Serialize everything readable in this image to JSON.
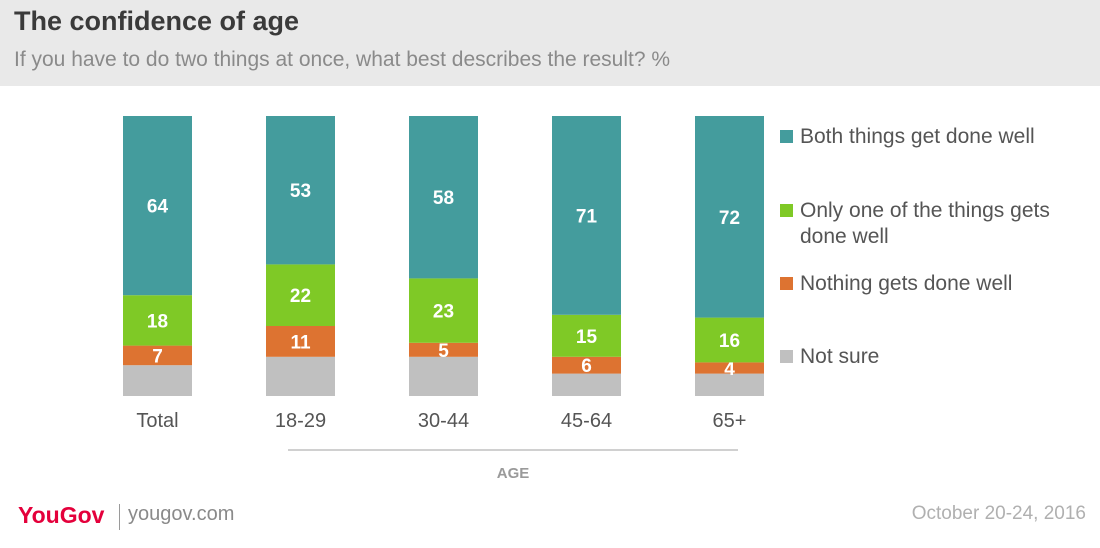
{
  "header": {
    "title": "The confidence of age",
    "subtitle": "If you have to do two things at once, what best describes the result? %"
  },
  "chart_data": {
    "type": "bar",
    "stacked": true,
    "categories": [
      "Total",
      "18-29",
      "30-44",
      "45-64",
      "65+"
    ],
    "series": [
      {
        "name": "Both things get done well",
        "color": "#449c9d",
        "values": [
          64,
          53,
          58,
          71,
          72
        ]
      },
      {
        "name": "Only one of the things gets done well",
        "color": "#7fc926",
        "values": [
          18,
          22,
          23,
          15,
          16
        ]
      },
      {
        "name": "Nothing gets done well",
        "color": "#dd7331",
        "values": [
          7,
          11,
          5,
          6,
          4
        ]
      },
      {
        "name": "Not sure",
        "color": "#c0c0c0",
        "values": [
          11,
          14,
          14,
          8,
          8
        ]
      }
    ],
    "data_labels": [
      [
        "64",
        "53",
        "58",
        "71",
        "72"
      ],
      [
        "18",
        "22",
        "23",
        "15",
        "16"
      ],
      [
        "7",
        "11",
        "5",
        "6",
        "4"
      ],
      [
        "",
        "",
        "",
        "",
        ""
      ]
    ],
    "xlabel": "AGE",
    "ylim": [
      0,
      100
    ],
    "legend_position": "right",
    "grid": false
  },
  "footer": {
    "brand": "YouGov",
    "site": "yougov.com",
    "date": "October 20-24, 2016"
  }
}
